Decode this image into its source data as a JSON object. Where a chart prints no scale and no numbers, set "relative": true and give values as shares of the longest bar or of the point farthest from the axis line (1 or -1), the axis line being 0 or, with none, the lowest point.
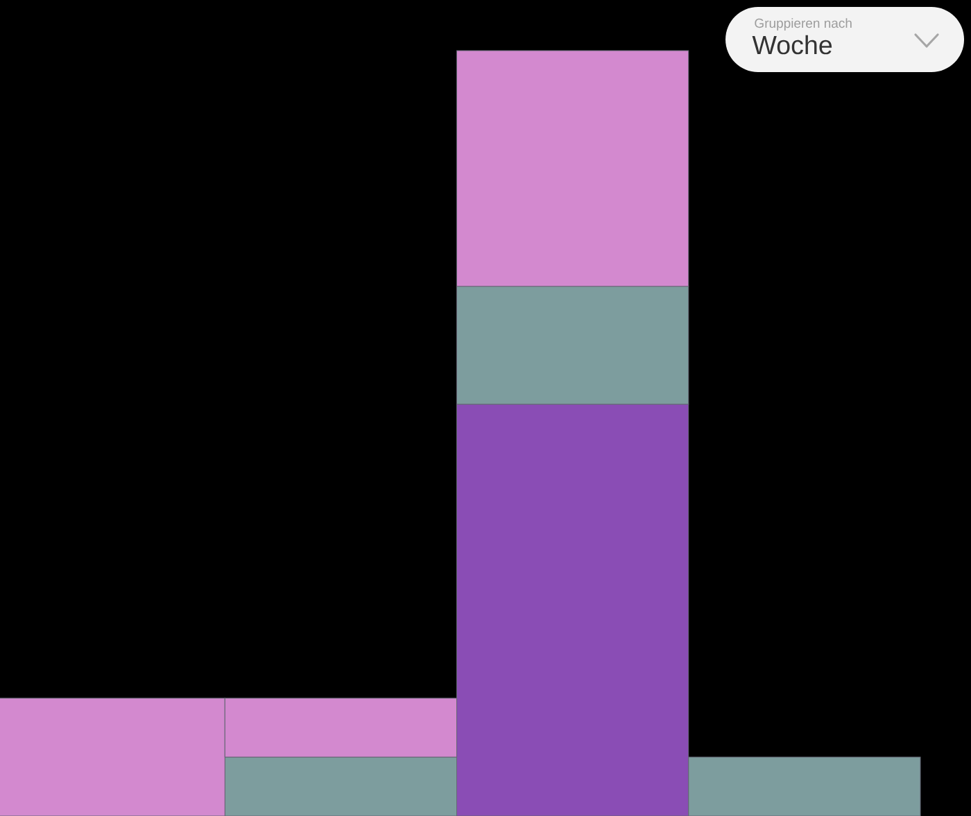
{
  "chart_data": {
    "type": "bar",
    "stacked": true,
    "relative": true,
    "categories": [
      null,
      null,
      null,
      null
    ],
    "series": [
      {
        "color": "#8a4db5",
        "values": [
          null,
          null,
          0.538,
          null
        ]
      },
      {
        "color": "#7d9d9e",
        "values": [
          null,
          0.077,
          0.154,
          0.077
        ]
      },
      {
        "color": "#d389cf",
        "values": [
          0.154,
          0.077,
          0.308,
          null
        ]
      }
    ],
    "annotations": [
      "Gruppieren nach",
      "Woche"
    ]
  }
}
